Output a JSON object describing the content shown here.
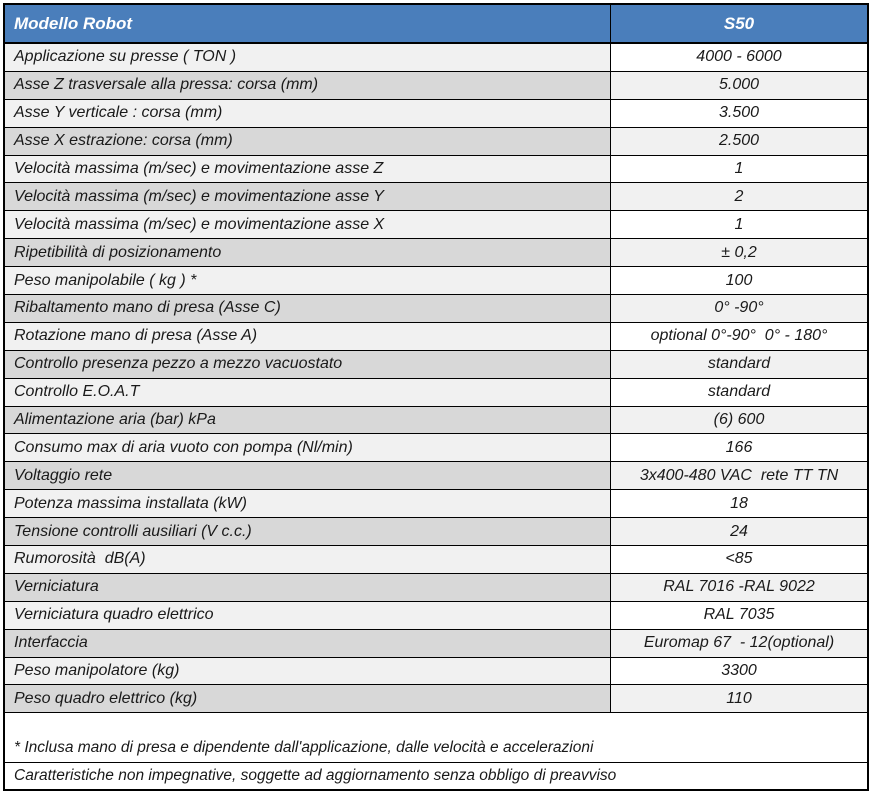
{
  "header": {
    "label": "Modello Robot",
    "model": "S50"
  },
  "table": {
    "rows": [
      {
        "label": "Applicazione su presse ( TON )",
        "value": "4000 - 6000"
      },
      {
        "label": "Asse Z trasversale alla pressa: corsa (mm)",
        "value": "5.000"
      },
      {
        "label": "Asse Y verticale : corsa (mm)",
        "value": "3.500"
      },
      {
        "label": "Asse X estrazione: corsa (mm)",
        "value": "2.500"
      },
      {
        "label": "Velocità massima (m/sec) e movimentazione asse Z",
        "value": "1"
      },
      {
        "label": "Velocità massima (m/sec) e movimentazione asse Y",
        "value": "2"
      },
      {
        "label": "Velocità massima (m/sec) e movimentazione asse X",
        "value": "1"
      },
      {
        "label": "Ripetibilità di posizionamento",
        "value": "± 0,2"
      },
      {
        "label": "Peso manipolabile ( kg ) *",
        "value": "100"
      },
      {
        "label": "Ribaltamento mano di presa (Asse C)",
        "value": "0° -90°"
      },
      {
        "label": "Rotazione mano di presa (Asse A)",
        "value": "optional 0°-90°  0° - 180°"
      },
      {
        "label": "Controllo presenza pezzo a mezzo vacuostato",
        "value": "standard"
      },
      {
        "label": "Controllo E.O.A.T",
        "value": "standard"
      },
      {
        "label": "Alimentazione aria (bar) kPa",
        "value": "(6) 600"
      },
      {
        "label": "Consumo max di aria vuoto con pompa (Nl/min)",
        "value": "166"
      },
      {
        "label": "Voltaggio rete",
        "value": "3x400-480 VAC  rete TT TN"
      },
      {
        "label": "Potenza massima installata (kW)",
        "value": "18"
      },
      {
        "label": "Tensione controlli ausiliari (V c.c.)",
        "value": "24"
      },
      {
        "label": "Rumorosità  dB(A)",
        "value": "<85"
      },
      {
        "label": "Verniciatura",
        "value": "RAL 7016 -RAL 9022"
      },
      {
        "label": "Verniciatura quadro elettrico",
        "value": "RAL 7035"
      },
      {
        "label": "Interfaccia",
        "value": "Euromap 67  - 12(optional)"
      },
      {
        "label": "Peso manipolatore (kg)",
        "value": "3300"
      },
      {
        "label": "Peso quadro elettrico (kg)",
        "value": "110"
      }
    ]
  },
  "footnotes": {
    "note1": "* Inclusa mano di presa e dipendente dall'applicazione, dalle velocità e accelerazioni",
    "note2": "Caratteristiche non impegnative, soggette ad aggiornamento senza obbligo di preavviso"
  },
  "colors": {
    "header_bg": "#4a7ebb",
    "header_text": "#ffffff",
    "band_light": "#f1f1f1",
    "band_dark": "#d8d8d8",
    "band_white": "#ffffff",
    "border": "#000000",
    "body_text": "#1a1a1a"
  }
}
